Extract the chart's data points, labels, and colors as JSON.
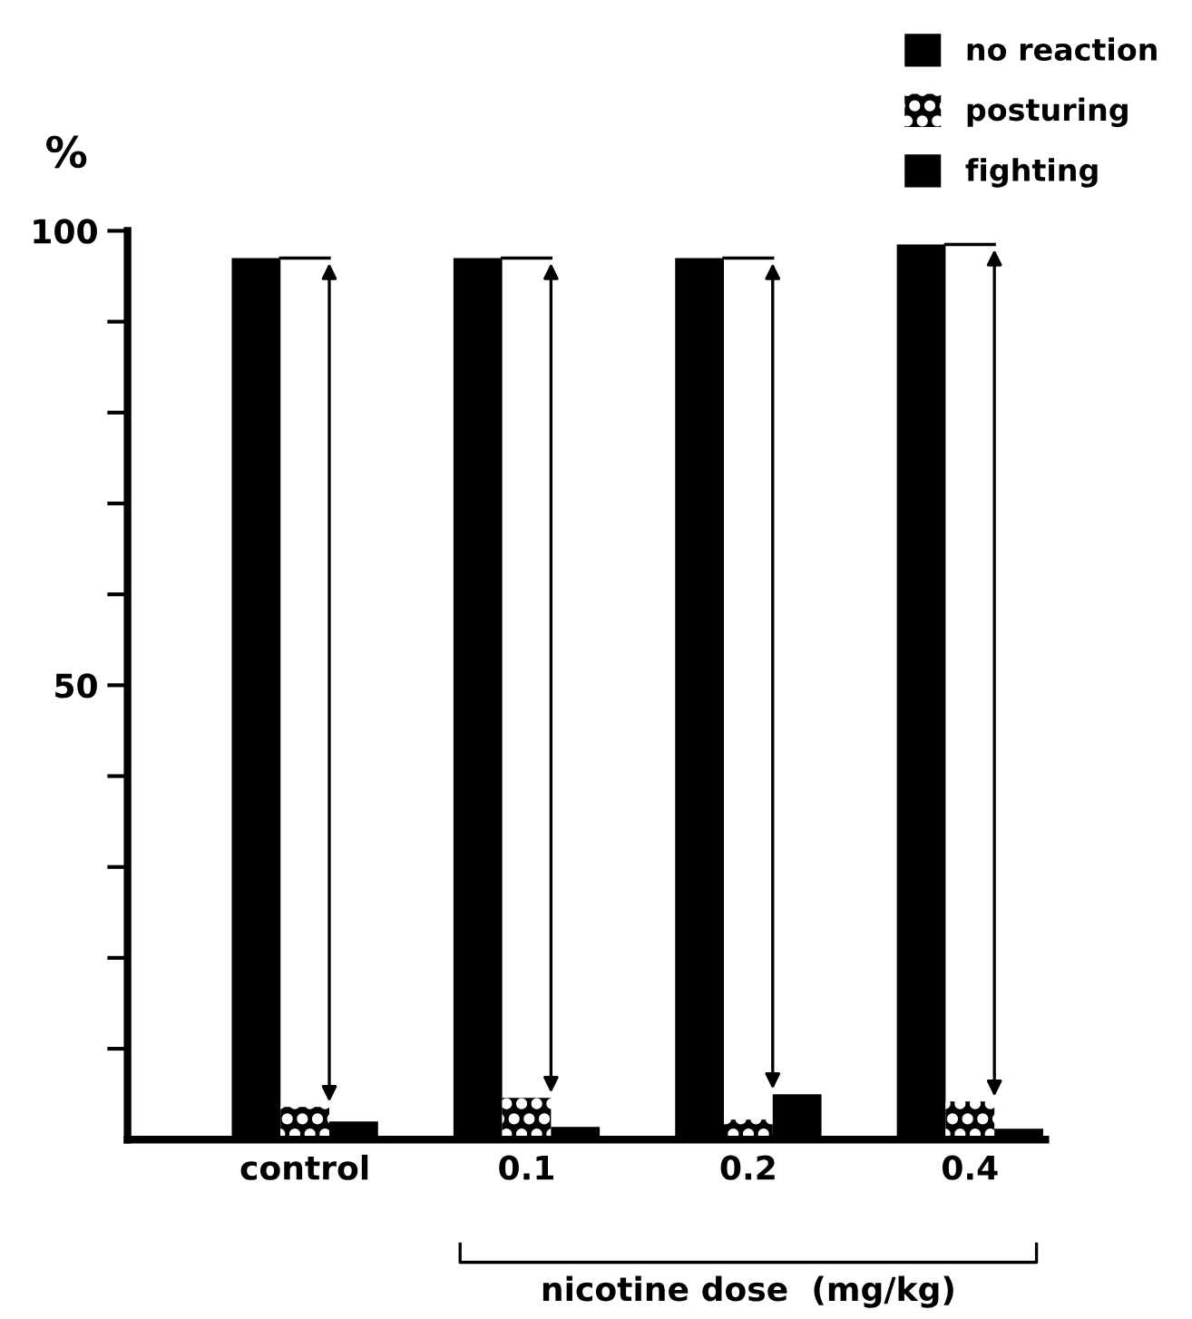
{
  "chart_data": {
    "type": "bar",
    "categories": [
      "control",
      "0.1",
      "0.2",
      "0.4"
    ],
    "xlabel": "nicotine dose  (mg/kg)",
    "ylabel": "%",
    "series": [
      {
        "name": "no reaction",
        "color": "#000000",
        "values": [
          97,
          97,
          97,
          98.5
        ]
      },
      {
        "name": "posturing",
        "color": "#000000",
        "values": [
          3.6,
          4.6,
          2.2,
          4.2
        ]
      },
      {
        "name": "fighting",
        "color": "#000000",
        "values": [
          2,
          1.4,
          5,
          1.2
        ]
      }
    ],
    "ylim": [
      0,
      100
    ],
    "yticks": [
      {
        "value": 10,
        "label": null
      },
      {
        "value": 20,
        "label": null
      },
      {
        "value": 30,
        "label": null
      },
      {
        "value": 40,
        "label": null
      },
      50,
      {
        "value": 60,
        "label": null
      },
      {
        "value": 70,
        "label": null
      },
      {
        "value": 80,
        "label": null
      },
      {
        "value": 90,
        "label": null
      },
      100
    ],
    "grid": false,
    "legend": "top right"
  }
}
